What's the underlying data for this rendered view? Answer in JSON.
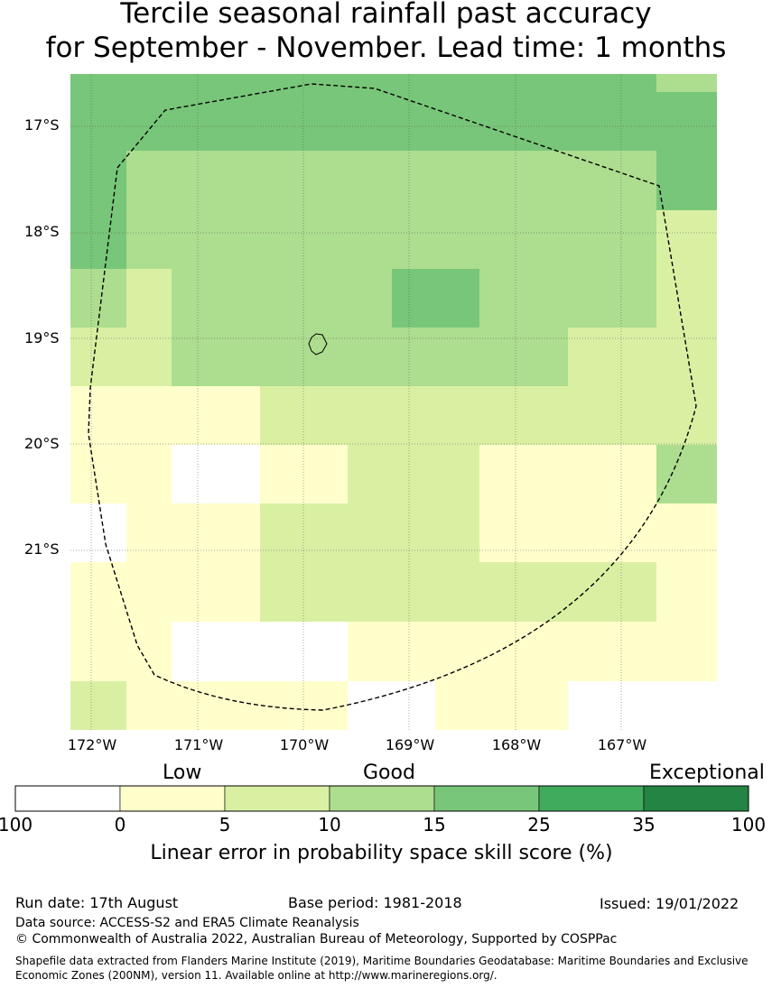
{
  "title": {
    "line1": "Tercile seasonal rainfall past accuracy",
    "line2": "for September - November. Lead time: 1 months"
  },
  "map": {
    "lat_labels": [
      "17°S",
      "18°S",
      "19°S",
      "20°S",
      "21°S"
    ],
    "lon_labels": [
      "172°W",
      "171°W",
      "170°W",
      "169°W",
      "168°W",
      "167°W"
    ],
    "grid": [
      [
        "c25",
        "c25",
        "c25",
        "c25",
        "c25",
        "c25",
        "c25",
        "c25",
        "c25",
        "c25",
        "c25",
        "c15"
      ],
      [
        "c25",
        "c25",
        "c25",
        "c25",
        "c25",
        "c25",
        "c25",
        "c25",
        "c25",
        "c25",
        "c25",
        "c25"
      ],
      [
        "c25",
        "c15",
        "c15",
        "c15",
        "c15",
        "c15",
        "c15",
        "c15",
        "c15",
        "c15",
        "c15",
        "c25"
      ],
      [
        "c25",
        "c15",
        "c15",
        "c15",
        "c15",
        "c15",
        "c15",
        "c15",
        "c15",
        "c15",
        "c15",
        "c10"
      ],
      [
        "c15",
        "c10",
        "c15",
        "c15",
        "c15",
        "c15",
        "c15",
        "c25",
        "c25",
        "c15",
        "c15",
        "c10"
      ],
      [
        "c10",
        "c10",
        "c15",
        "c15",
        "c15",
        "c15",
        "c15",
        "c15",
        "c15",
        "c15",
        "c10",
        "c10"
      ],
      [
        "c5",
        "c5",
        "c5",
        "c5",
        "c10",
        "c10",
        "c10",
        "c10",
        "c10",
        "c10",
        "c10",
        "c10"
      ],
      [
        "c5",
        "c5",
        "c0",
        "c0",
        "c5",
        "c5",
        "c10",
        "c10",
        "c10",
        "c5",
        "c5",
        "c15"
      ],
      [
        "c0",
        "c5",
        "c5",
        "c5",
        "c10",
        "c10",
        "c10",
        "c10",
        "c10",
        "c5",
        "c5",
        "c5"
      ],
      [
        "c5",
        "c5",
        "c5",
        "c5",
        "c10",
        "c10",
        "c10",
        "c10",
        "c10",
        "c10",
        "c10",
        "c5"
      ],
      [
        "c5",
        "c5",
        "c0",
        "c0",
        "c0",
        "c0",
        "c5",
        "c5",
        "c5",
        "c5",
        "c5",
        "c5"
      ],
      [
        "c10",
        "c5",
        "c5",
        "c5",
        "c5",
        "c5",
        "c0",
        "c0",
        "c5",
        "c5",
        "c0",
        "c0"
      ]
    ]
  },
  "legend": {
    "categories": [
      "Low",
      "Good",
      "Exceptional"
    ],
    "ticks": [
      "100",
      "0",
      "5",
      "10",
      "15",
      "25",
      "35",
      "100"
    ],
    "colors": [
      "#ffffff",
      "#ffffcc",
      "#d9f0a3",
      "#addd8e",
      "#78c679",
      "#41ab5d",
      "#238443"
    ],
    "title": "Linear error in probability space skill score (%)"
  },
  "colors": {
    "c0": "#ffffff",
    "c5": "#ffffcc",
    "c10": "#d9f0a3",
    "c15": "#addd8e",
    "c25": "#78c679",
    "c35": "#41ab5d",
    "c100": "#238443"
  },
  "footer": {
    "run_date": "Run date: 17th August",
    "base_period": "Base period: 1981-2018",
    "issued": "Issued: 19/01/2022",
    "data_source": "Data source: ACCESS-S2 and ERA5 Climate Reanalysis",
    "copyright": "© Commonwealth of Australia 2022, Australian Bureau of Meteorology, Supported by COSPPac",
    "shapefile": "Shapefile data extracted from Flanders Marine Institute (2019), Maritime Boundaries Geodatabase: Maritime Boundaries and Exclusive Economic Zones (200NM), version 11. Available online at http://www.marineregions.org/."
  }
}
